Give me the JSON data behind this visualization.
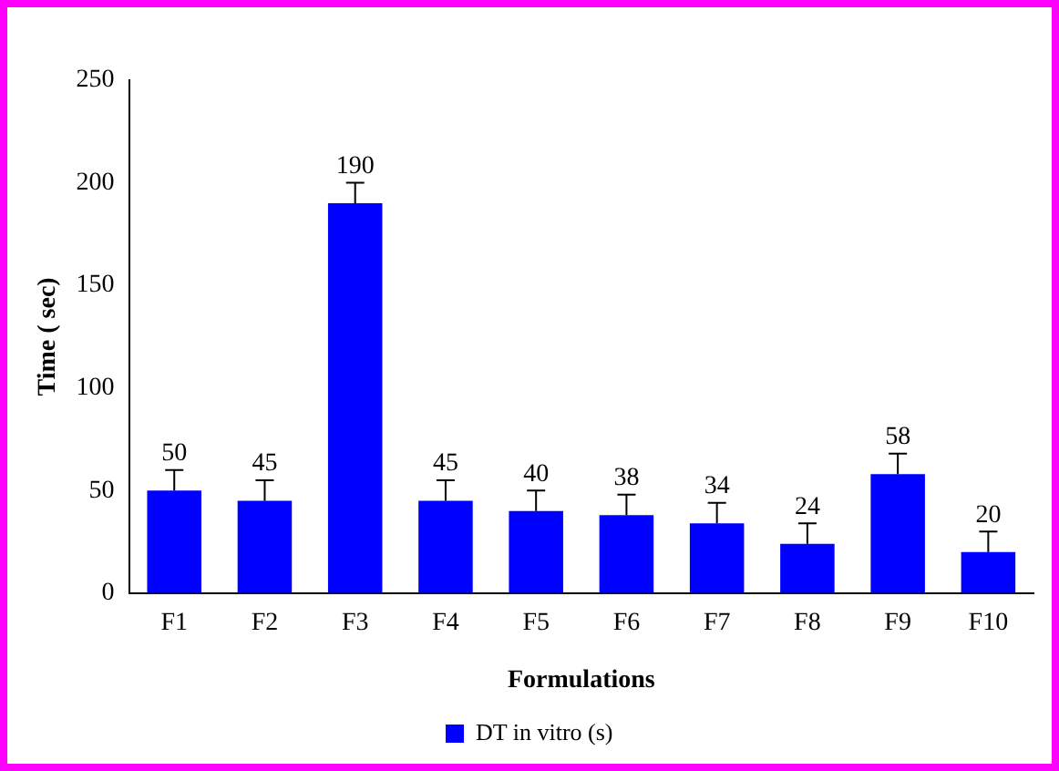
{
  "chart_data": {
    "type": "bar",
    "xlabel": "Formulations",
    "ylabel": "Time ( sec)",
    "categories": [
      "F1",
      "F2",
      "F3",
      "F4",
      "F5",
      "F6",
      "F7",
      "F8",
      "F9",
      "F10"
    ],
    "series": [
      {
        "name": "DT in vitro (s)",
        "color": "#0000ff",
        "values": [
          50,
          45,
          190,
          45,
          40,
          38,
          34,
          24,
          58,
          20
        ],
        "errors": [
          [
            50,
            60
          ],
          [
            45,
            55
          ],
          [
            190,
            200
          ],
          [
            45,
            55
          ],
          [
            40,
            50
          ],
          [
            38,
            48
          ],
          [
            34,
            44
          ],
          [
            24,
            34
          ],
          [
            58,
            68
          ],
          [
            20,
            30
          ]
        ]
      }
    ],
    "ylim": [
      0,
      250
    ],
    "yticks": [
      0,
      50,
      100,
      150,
      200,
      250
    ],
    "grid": false,
    "legend": "bottom",
    "data_labels": true
  }
}
